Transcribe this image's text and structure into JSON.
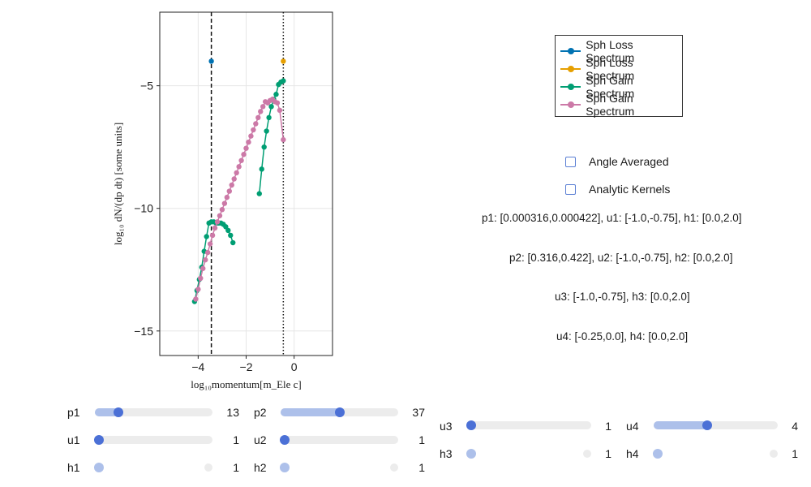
{
  "chart_data": {
    "type": "line",
    "xlabel": "log₁₀momentum[m_Ele c]",
    "ylabel": "log₁₀ dN/(dp dt) [some units]",
    "xlim": [
      -5.6,
      1.6
    ],
    "ylim": [
      -16.0,
      -2.0
    ],
    "xticks": [
      -4,
      -2,
      0
    ],
    "xtick_labels": [
      "−4",
      "−2",
      "0"
    ],
    "yticks": [
      -15,
      -10,
      -5
    ],
    "ytick_labels": [
      "−15",
      "−10",
      "−5"
    ],
    "grid": true,
    "vlines": [
      {
        "x": -3.45,
        "style": "dashed"
      },
      {
        "x": -0.45,
        "style": "dotted"
      }
    ],
    "legend_position": "top-right",
    "series": [
      {
        "name": "Sph Loss Spectrum",
        "color": "#0072b2",
        "x": [
          -3.45
        ],
        "y": [
          -4.0
        ]
      },
      {
        "name": "Sph Loss Spectrum",
        "color": "#e69f00",
        "x": [
          -0.45
        ],
        "y": [
          -4.0
        ]
      },
      {
        "name": "Sph Gain Spectrum",
        "color": "#009e73",
        "x": [
          -4.15,
          -4.05,
          -3.95,
          -3.85,
          -3.75,
          -3.65,
          -3.55,
          -3.45,
          -3.35,
          -3.25,
          -3.15,
          -3.05,
          -2.95,
          -2.85,
          -2.75,
          -2.65,
          -2.55
        ],
        "y": [
          -13.8,
          -13.35,
          -12.9,
          -12.4,
          -11.75,
          -11.15,
          -10.6,
          -10.55,
          -10.55,
          -10.6,
          -10.6,
          -10.6,
          -10.65,
          -10.75,
          -10.9,
          -11.1,
          -11.4
        ],
        "x2": [
          -1.45,
          -1.35,
          -1.25,
          -1.15,
          -1.05,
          -0.95,
          -0.85,
          -0.75,
          -0.65,
          -0.55,
          -0.45
        ],
        "y2": [
          -9.4,
          -8.4,
          -7.5,
          -6.85,
          -6.3,
          -5.85,
          -5.55,
          -5.35,
          -4.95,
          -4.85,
          -4.8
        ]
      },
      {
        "name": "Sph Gain Spectrum",
        "color": "#cc79a7",
        "x": [
          -4.1,
          -4.0,
          -3.9,
          -3.8,
          -3.7,
          -3.6,
          -3.5,
          -3.4,
          -3.3,
          -3.2,
          -3.1,
          -3.0,
          -2.9,
          -2.8,
          -2.7,
          -2.6,
          -2.5,
          -2.4,
          -2.3,
          -2.2,
          -2.1,
          -2.0,
          -1.9,
          -1.8,
          -1.7,
          -1.6,
          -1.5,
          -1.4,
          -1.3,
          -1.2,
          -1.1,
          -1.0,
          -0.9,
          -0.8,
          -0.7,
          -0.6,
          -0.45
        ],
        "y": [
          -13.7,
          -13.3,
          -12.85,
          -12.45,
          -12.1,
          -11.8,
          -11.45,
          -11.1,
          -10.8,
          -10.55,
          -10.3,
          -10.05,
          -9.8,
          -9.55,
          -9.3,
          -9.05,
          -8.8,
          -8.55,
          -8.3,
          -8.05,
          -7.8,
          -7.55,
          -7.3,
          -7.05,
          -6.8,
          -6.55,
          -6.3,
          -6.05,
          -5.85,
          -5.65,
          -5.7,
          -5.6,
          -5.55,
          -5.65,
          -5.7,
          -6.0,
          -7.2
        ]
      }
    ]
  },
  "legend": {
    "entries": [
      {
        "label": "Sph Loss Spectrum",
        "color": "#0072b2"
      },
      {
        "label": "Sph Loss Spectrum",
        "color": "#e69f00"
      },
      {
        "label": "Sph Gain Spectrum",
        "color": "#009e73"
      },
      {
        "label": "Sph Gain Spectrum",
        "color": "#cc79a7"
      }
    ]
  },
  "toggles": {
    "angle_averaged": "Angle Averaged",
    "analytic_kernels": "Analytic Kernels"
  },
  "info": {
    "line1": "p1: [0.000316,0.000422], u1: [-1.0,-0.75], h1: [0.0,2.0]",
    "line2": "p2: [0.316,0.422], u2: [-1.0,-0.75], h2: [0.0,2.0]",
    "line3": "u3: [-1.0,-0.75], h3: [0.0,2.0]",
    "line4": "u4: [-0.25,0.0], h4: [0.0,2.0]"
  },
  "sliders": {
    "p1": {
      "label": "p1",
      "value": "13",
      "fraction": 0.2
    },
    "u1": {
      "label": "u1",
      "value": "1",
      "fraction": 0.0
    },
    "h1": {
      "label": "h1",
      "value": "1",
      "fraction": 0.0
    },
    "p2": {
      "label": "p2",
      "value": "37",
      "fraction": 0.5
    },
    "u2": {
      "label": "u2",
      "value": "1",
      "fraction": 0.0
    },
    "h2": {
      "label": "h2",
      "value": "1",
      "fraction": 0.0
    },
    "u3": {
      "label": "u3",
      "value": "1",
      "fraction": 0.0
    },
    "h3": {
      "label": "h3",
      "value": "1",
      "fraction": 0.0
    },
    "u4": {
      "label": "u4",
      "value": "4",
      "fraction": 0.45
    },
    "h4": {
      "label": "h4",
      "value": "1",
      "fraction": 0.0
    }
  }
}
